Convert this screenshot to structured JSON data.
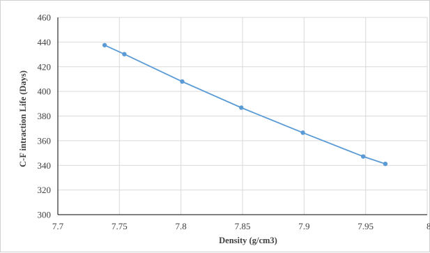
{
  "chart_data": {
    "type": "line",
    "title": "",
    "xlabel": "Density (g/cm3)",
    "ylabel": "C-F intraction Life (Days)",
    "xlim": [
      7.7,
      8
    ],
    "ylim": [
      300,
      460
    ],
    "x_ticks": [
      "7.7",
      "7.75",
      "7.8",
      "7.85",
      "7.9",
      "7.95",
      "8"
    ],
    "y_ticks": [
      "300",
      "320",
      "340",
      "360",
      "380",
      "400",
      "420",
      "440",
      "460"
    ],
    "x_tick_values": [
      7.7,
      7.75,
      7.8,
      7.85,
      7.9,
      7.95,
      8.0
    ],
    "y_tick_values": [
      300,
      320,
      340,
      360,
      380,
      400,
      420,
      440,
      460
    ],
    "grid": true,
    "series": [
      {
        "x": [
          7.738,
          7.754,
          7.801,
          7.849,
          7.899,
          7.948,
          7.966
        ],
        "y": [
          437.5,
          430.2,
          408.0,
          386.8,
          366.5,
          347.2,
          341.2
        ],
        "color": "#5b9bd5"
      }
    ]
  }
}
